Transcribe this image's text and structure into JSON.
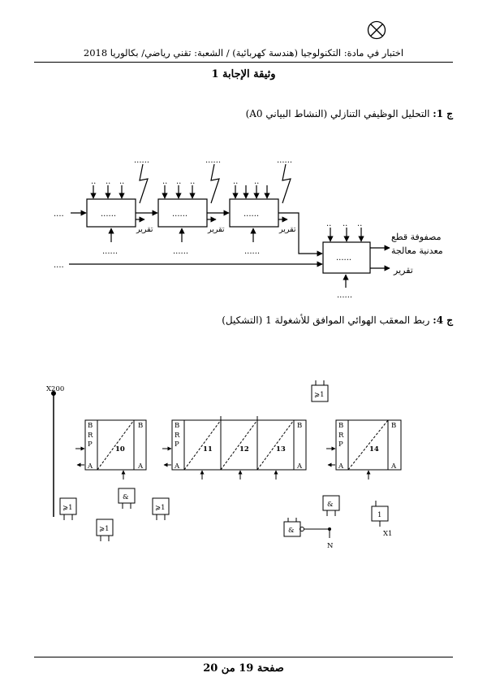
{
  "page": {
    "header_text": "اختبار في مادة: التكنولوجيا (هندسة كهربائية) / الشعبة: تقني رياضي/ بكالوريا 2018",
    "title": "وثيقة الإجابة 1",
    "footer_text": "صفحة 19 من 20"
  },
  "q1": {
    "number": "ج 1:",
    "text": "التحليل الوظيفي التنازلي (النشاط البياني A0)"
  },
  "q4": {
    "number": "ج 4:",
    "text": "ربط المعقب الهوائي الموافق للأشغولة 1 (التشكيل)"
  },
  "a0_diagram": {
    "box_dots": "......",
    "small_dots": "..",
    "input_dots": "....",
    "control_dots": "......",
    "report_label": "تقرير",
    "output_line1": "مصفوفة قطع",
    "output_line2": "معدنية معالجة",
    "output_report": "تقرير"
  },
  "pneumatic": {
    "x200": "X200",
    "stages": [
      "10",
      "11",
      "12",
      "13",
      "14"
    ],
    "port_b": "B",
    "port_r": "R",
    "port_p": "P",
    "port_a": "A",
    "gate_or": "⩾1",
    "gate_and": "&",
    "gate_one": "1",
    "label_n": "N",
    "label_x1": "X1"
  }
}
